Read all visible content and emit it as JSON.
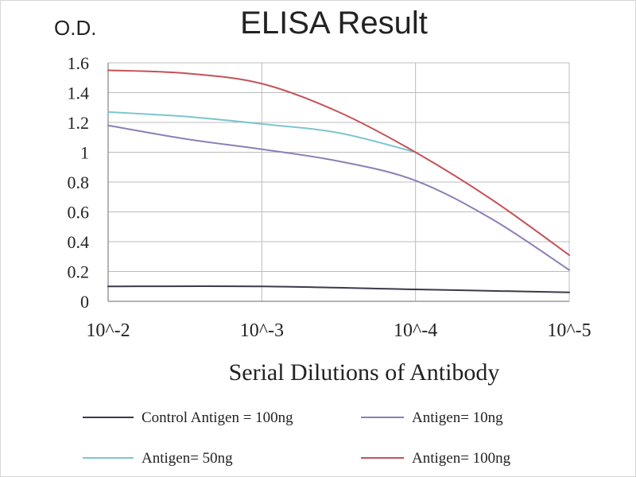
{
  "chart_data": {
    "type": "line",
    "title": "ELISA Result",
    "ylabel": "O.D.",
    "xlabel": "Serial  Dilutions  of Antibody",
    "x_categories": [
      "10^-2",
      "10^-3",
      "10^-4",
      "10^-5"
    ],
    "x_positions": [
      0,
      1,
      2,
      3
    ],
    "y_ticks": [
      "0",
      "0.2",
      "0.4",
      "0.6",
      "0.8",
      "1",
      "1.2",
      "1.4",
      "1.6"
    ],
    "ylim": [
      0,
      1.6
    ],
    "grid": true,
    "legend_position": "bottom",
    "series": [
      {
        "name": "Control Antigen = 100ng",
        "color": "#3a3a4a",
        "points": [
          [
            0,
            0.1
          ],
          [
            1,
            0.1
          ],
          [
            2,
            0.08
          ],
          [
            3,
            0.06
          ]
        ]
      },
      {
        "name": "Antigen= 10ng",
        "color": "#8d7fb4",
        "points": [
          [
            0,
            1.18
          ],
          [
            0.5,
            1.09
          ],
          [
            1,
            1.02
          ],
          [
            1.5,
            0.94
          ],
          [
            2,
            0.81
          ],
          [
            2.5,
            0.55
          ],
          [
            3,
            0.21
          ]
        ]
      },
      {
        "name": "Antigen= 50ng",
        "color": "#7cc6cf",
        "points": [
          [
            0,
            1.27
          ],
          [
            0.5,
            1.24
          ],
          [
            1,
            1.19
          ],
          [
            1.5,
            1.13
          ],
          [
            2,
            1.0
          ]
        ]
      },
      {
        "name": "Antigen= 100ng",
        "color": "#c45258",
        "points": [
          [
            0,
            1.55
          ],
          [
            0.5,
            1.53
          ],
          [
            1,
            1.46
          ],
          [
            1.5,
            1.27
          ],
          [
            2,
            1.0
          ],
          [
            2.5,
            0.68
          ],
          [
            3,
            0.31
          ]
        ]
      }
    ]
  }
}
